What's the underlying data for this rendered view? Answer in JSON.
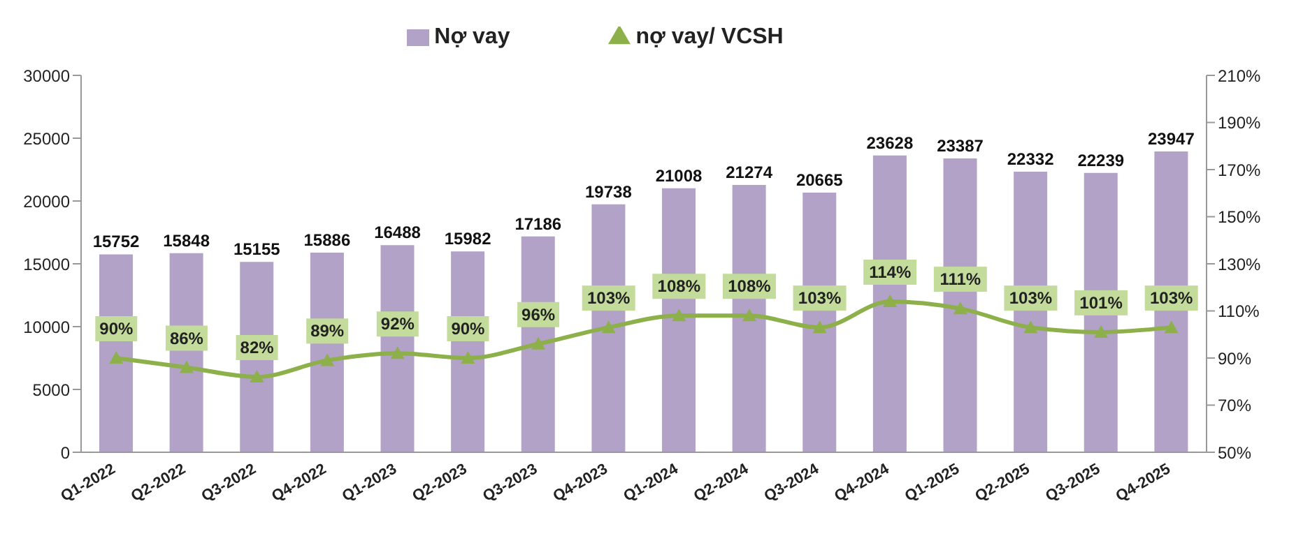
{
  "chart_data": {
    "type": "bar",
    "categories": [
      "Q1-2022",
      "Q2-2022",
      "Q3-2022",
      "Q4-2022",
      "Q1-2023",
      "Q2-2023",
      "Q3-2023",
      "Q4-2023",
      "Q1-2024",
      "Q2-2024",
      "Q3-2024",
      "Q4-2024",
      "Q1-2025",
      "Q2-2025",
      "Q3-2025",
      "Q4-2025"
    ],
    "series": [
      {
        "name": "Nợ vay",
        "color": "#b3a2c7",
        "values": [
          15752,
          15848,
          15155,
          15886,
          16488,
          15982,
          17186,
          19738,
          21008,
          21274,
          20665,
          23628,
          23387,
          22332,
          22239,
          23947
        ]
      },
      {
        "name": "nợ vay/ VCSH",
        "type": "line",
        "axis": "y2",
        "color": "#8db04a",
        "marker": "triangle",
        "values": [
          90,
          86,
          82,
          89,
          92,
          90,
          96,
          103,
          108,
          108,
          103,
          114,
          111,
          103,
          101,
          103
        ],
        "value_labels": [
          "90%",
          "86%",
          "82%",
          "89%",
          "92%",
          "90%",
          "96%",
          "103%",
          "108%",
          "108%",
          "103%",
          "114%",
          "111%",
          "103%",
          "101%",
          "103%"
        ]
      }
    ],
    "ylim": [
      0,
      30000
    ],
    "yticks": [
      0,
      5000,
      10000,
      15000,
      20000,
      25000,
      30000
    ],
    "y2lim": [
      50,
      210
    ],
    "y2ticks": [
      {
        "value": 50,
        "label": "50%"
      },
      {
        "value": 70,
        "label": "70%"
      },
      {
        "value": 90,
        "label": "90%"
      },
      {
        "value": 110,
        "label": "110%"
      },
      {
        "value": 130,
        "label": "130%"
      },
      {
        "value": 150,
        "label": "150%"
      },
      {
        "value": 170,
        "label": "170%"
      },
      {
        "value": 190,
        "label": "190%"
      },
      {
        "value": 210,
        "label": "210%"
      }
    ],
    "data_labels": true,
    "legend": "top"
  }
}
